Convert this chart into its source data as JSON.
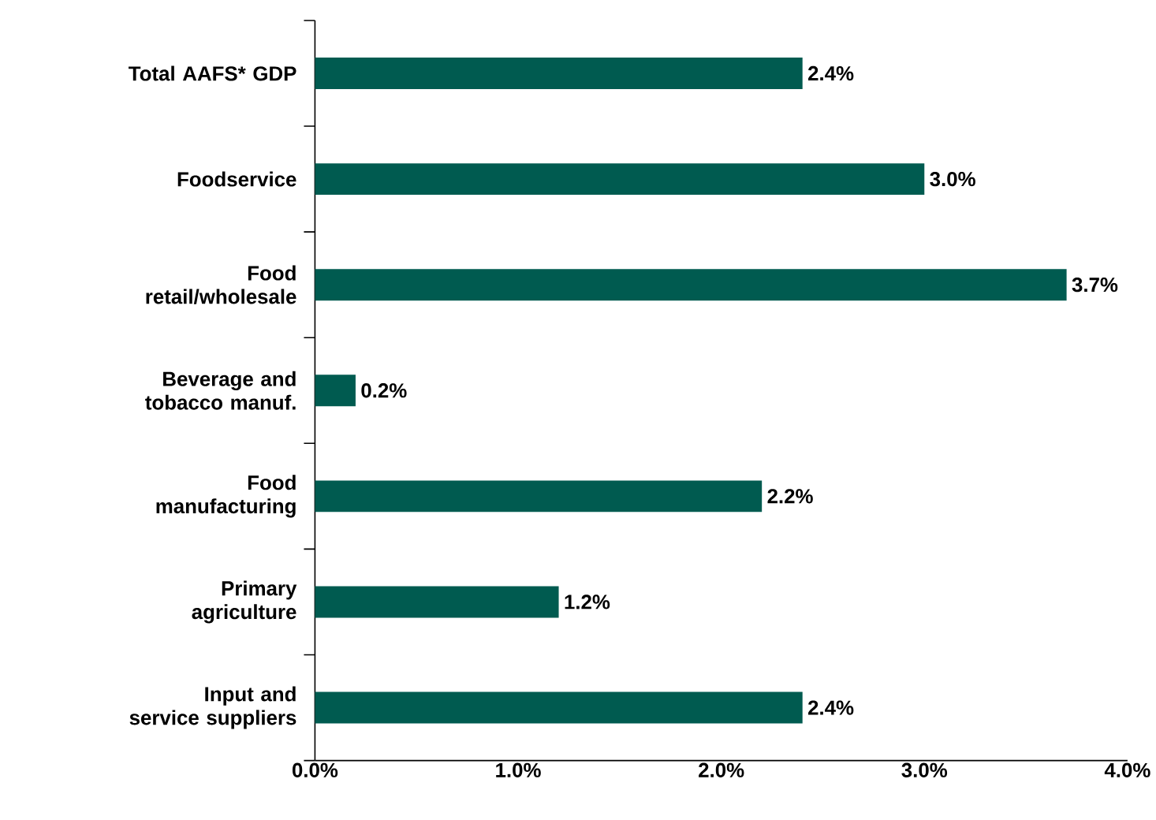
{
  "chart_data": {
    "type": "bar",
    "orientation": "horizontal",
    "categories": [
      "Total AAFS* GDP",
      "Foodservice",
      "Food retail/wholesale",
      "Beverage and tobacco manuf.",
      "Food manufacturing",
      "Primary agriculture",
      "Input and service suppliers"
    ],
    "values": [
      2.4,
      3.0,
      3.7,
      0.2,
      2.2,
      1.2,
      2.4
    ],
    "value_labels": [
      "2.4%",
      "3.0%",
      "3.7%",
      "0.2%",
      "2.2%",
      "1.2%",
      "2.4%"
    ],
    "color": "#005b50",
    "xlim": [
      0,
      4
    ],
    "xticks": [
      {
        "value": 0,
        "label": "0.0%"
      },
      {
        "value": 1,
        "label": "1.0%"
      },
      {
        "value": 2,
        "label": "2.0%"
      },
      {
        "value": 3,
        "label": "3.0%"
      },
      {
        "value": 4,
        "label": "4.0%"
      }
    ],
    "grid": false
  }
}
